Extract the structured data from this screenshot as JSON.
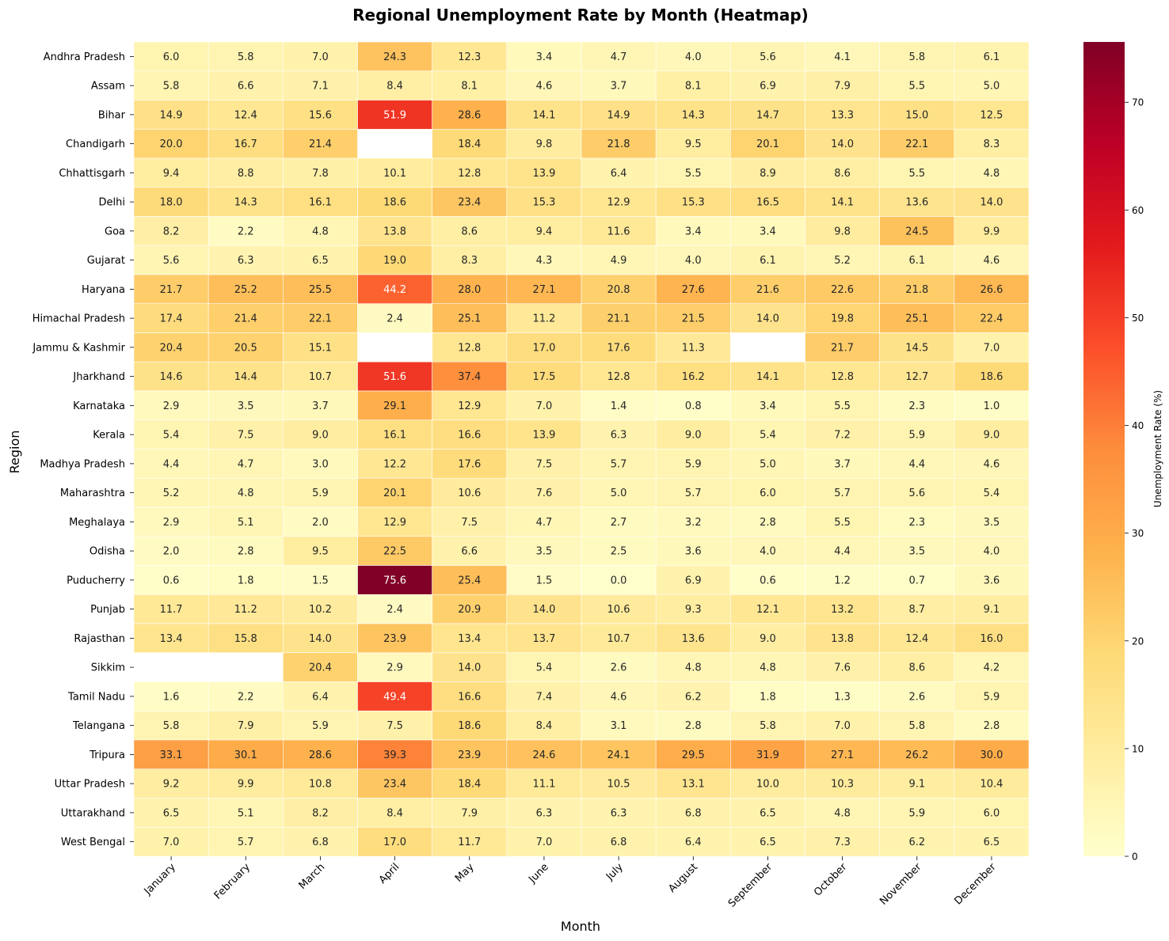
{
  "chart_data": {
    "type": "heatmap",
    "title": "Regional Unemployment Rate by Month (Heatmap)",
    "xlabel": "Month",
    "ylabel": "Region",
    "colorbar_label": "Unemployment Rate (%)",
    "colormap": "YlOrRd",
    "value_range": [
      0,
      75.6
    ],
    "colorbar_ticks": [
      0,
      10,
      20,
      30,
      40,
      50,
      60,
      70
    ],
    "x_categories": [
      "January",
      "February",
      "March",
      "April",
      "May",
      "June",
      "July",
      "August",
      "September",
      "October",
      "November",
      "December"
    ],
    "y_categories": [
      "Andhra Pradesh",
      "Assam",
      "Bihar",
      "Chandigarh",
      "Chhattisgarh",
      "Delhi",
      "Goa",
      "Gujarat",
      "Haryana",
      "Himachal Pradesh",
      "Jammu & Kashmir",
      "Jharkhand",
      "Karnataka",
      "Kerala",
      "Madhya Pradesh",
      "Maharashtra",
      "Meghalaya",
      "Odisha",
      "Puducherry",
      "Punjab",
      "Rajasthan",
      "Sikkim",
      "Tamil Nadu",
      "Telangana",
      "Tripura",
      "Uttar Pradesh",
      "Uttarakhand",
      "West Bengal"
    ],
    "values": [
      [
        6.0,
        5.8,
        7.0,
        24.3,
        12.3,
        3.4,
        4.7,
        4.0,
        5.6,
        4.1,
        5.8,
        6.1
      ],
      [
        5.8,
        6.6,
        7.1,
        8.4,
        8.1,
        4.6,
        3.7,
        8.1,
        6.9,
        7.9,
        5.5,
        5.0
      ],
      [
        14.9,
        12.4,
        15.6,
        51.9,
        28.6,
        14.1,
        14.9,
        14.3,
        14.7,
        13.3,
        15.0,
        12.5
      ],
      [
        20.0,
        16.7,
        21.4,
        null,
        18.4,
        9.8,
        21.8,
        9.5,
        20.1,
        14.0,
        22.1,
        8.3
      ],
      [
        9.4,
        8.8,
        7.8,
        10.1,
        12.8,
        13.9,
        6.4,
        5.5,
        8.9,
        8.6,
        5.5,
        4.8
      ],
      [
        18.0,
        14.3,
        16.1,
        18.6,
        23.4,
        15.3,
        12.9,
        15.3,
        16.5,
        14.1,
        13.6,
        14.0
      ],
      [
        8.2,
        2.2,
        4.8,
        13.8,
        8.6,
        9.4,
        11.6,
        3.4,
        3.4,
        9.8,
        24.5,
        9.9
      ],
      [
        5.6,
        6.3,
        6.5,
        19.0,
        8.3,
        4.3,
        4.9,
        4.0,
        6.1,
        5.2,
        6.1,
        4.6
      ],
      [
        21.7,
        25.2,
        25.5,
        44.2,
        28.0,
        27.1,
        20.8,
        27.6,
        21.6,
        22.6,
        21.8,
        26.6
      ],
      [
        17.4,
        21.4,
        22.1,
        2.4,
        25.1,
        11.2,
        21.1,
        21.5,
        14.0,
        19.8,
        25.1,
        22.4
      ],
      [
        20.4,
        20.5,
        15.1,
        null,
        12.8,
        17.0,
        17.6,
        11.3,
        null,
        21.7,
        14.5,
        7.0
      ],
      [
        14.6,
        14.4,
        10.7,
        51.6,
        37.4,
        17.5,
        12.8,
        16.2,
        14.1,
        12.8,
        12.7,
        18.6
      ],
      [
        2.9,
        3.5,
        3.7,
        29.1,
        12.9,
        7.0,
        1.4,
        0.8,
        3.4,
        5.5,
        2.3,
        1.0
      ],
      [
        5.4,
        7.5,
        9.0,
        16.1,
        16.6,
        13.9,
        6.3,
        9.0,
        5.4,
        7.2,
        5.9,
        9.0
      ],
      [
        4.4,
        4.7,
        3.0,
        12.2,
        17.6,
        7.5,
        5.7,
        5.9,
        5.0,
        3.7,
        4.4,
        4.6
      ],
      [
        5.2,
        4.8,
        5.9,
        20.1,
        10.6,
        7.6,
        5.0,
        5.7,
        6.0,
        5.7,
        5.6,
        5.4
      ],
      [
        2.9,
        5.1,
        2.0,
        12.9,
        7.5,
        4.7,
        2.7,
        3.2,
        2.8,
        5.5,
        2.3,
        3.5
      ],
      [
        2.0,
        2.8,
        9.5,
        22.5,
        6.6,
        3.5,
        2.5,
        3.6,
        4.0,
        4.4,
        3.5,
        4.0
      ],
      [
        0.6,
        1.8,
        1.5,
        75.6,
        25.4,
        1.5,
        0.0,
        6.9,
        0.6,
        1.2,
        0.7,
        3.6
      ],
      [
        11.7,
        11.2,
        10.2,
        2.4,
        20.9,
        14.0,
        10.6,
        9.3,
        12.1,
        13.2,
        8.7,
        9.1
      ],
      [
        13.4,
        15.8,
        14.0,
        23.9,
        13.4,
        13.7,
        10.7,
        13.6,
        9.0,
        13.8,
        12.4,
        16.0
      ],
      [
        null,
        null,
        20.4,
        2.9,
        14.0,
        5.4,
        2.6,
        4.8,
        4.8,
        7.6,
        8.6,
        4.2
      ],
      [
        1.6,
        2.2,
        6.4,
        49.4,
        16.6,
        7.4,
        4.6,
        6.2,
        1.8,
        1.3,
        2.6,
        5.9
      ],
      [
        5.8,
        7.9,
        5.9,
        7.5,
        18.6,
        8.4,
        3.1,
        2.8,
        5.8,
        7.0,
        5.8,
        2.8
      ],
      [
        33.1,
        30.1,
        28.6,
        39.3,
        23.9,
        24.6,
        24.1,
        29.5,
        31.9,
        27.1,
        26.2,
        30.0
      ],
      [
        9.2,
        9.9,
        10.8,
        23.4,
        18.4,
        11.1,
        10.5,
        13.1,
        10.0,
        10.3,
        9.1,
        10.4
      ],
      [
        6.5,
        5.1,
        8.2,
        8.4,
        7.9,
        6.3,
        6.3,
        6.8,
        6.5,
        4.8,
        5.9,
        6.0
      ],
      [
        7.0,
        5.7,
        6.8,
        17.0,
        11.7,
        7.0,
        6.8,
        6.4,
        6.5,
        7.3,
        6.2,
        6.5
      ]
    ]
  }
}
